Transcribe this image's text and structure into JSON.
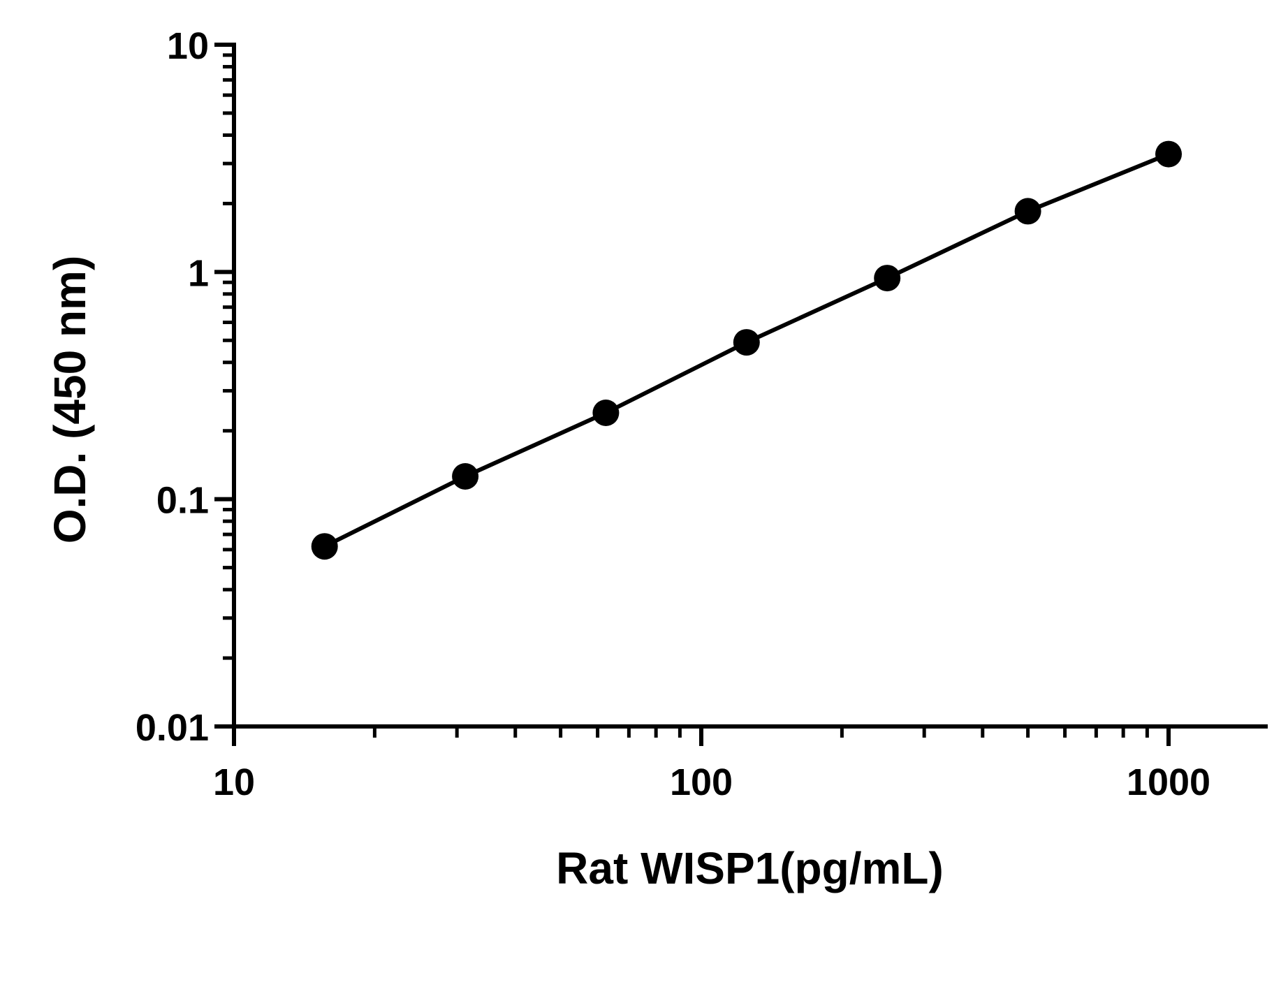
{
  "chart_data": {
    "type": "line",
    "x_scale": "log",
    "y_scale": "log",
    "xlabel": "Rat WISP1(pg/mL)",
    "ylabel": "O.D. (450 nm)",
    "xlim": [
      10,
      2000
    ],
    "ylim": [
      0.01,
      10
    ],
    "x_ticks": [
      {
        "value": 10,
        "label": "10"
      },
      {
        "value": 100,
        "label": "100"
      },
      {
        "value": 1000,
        "label": "1000"
      }
    ],
    "y_ticks": [
      {
        "value": 0.01,
        "label": "0.01"
      },
      {
        "value": 0.1,
        "label": "0.1"
      },
      {
        "value": 1,
        "label": "1"
      },
      {
        "value": 10,
        "label": "10"
      }
    ],
    "grid": false,
    "legend": "none",
    "series": [
      {
        "color": "#000000",
        "marker": "circle",
        "x": [
          15.625,
          31.25,
          62.5,
          125,
          250,
          500,
          1000
        ],
        "y": [
          0.062,
          0.126,
          0.24,
          0.49,
          0.94,
          1.85,
          3.3
        ]
      }
    ]
  }
}
